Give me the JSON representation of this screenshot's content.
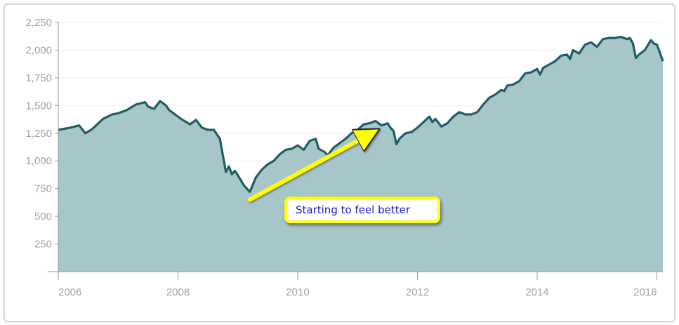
{
  "chart_data": {
    "type": "area",
    "title": "",
    "xlabel": "",
    "ylabel": "",
    "xlim": [
      2006.0,
      2016.1
    ],
    "ylim": [
      0,
      2250
    ],
    "y_ticks": [
      250,
      500,
      750,
      1000,
      1250,
      1500,
      1750,
      2000,
      2250
    ],
    "y_tick_labels": [
      "250",
      "500",
      "750",
      "1,000",
      "1,250",
      "1,500",
      "1,750",
      "2,000",
      "2,250"
    ],
    "x_ticks": [
      2006,
      2008,
      2010,
      2012,
      2014,
      2016
    ],
    "x_tick_labels": [
      "2006",
      "2008",
      "2010",
      "2012",
      "2014",
      "2016"
    ],
    "grid": true,
    "line_color": "#1f5f63",
    "fill_color": "#a7c6c9",
    "series": [
      {
        "x": [
          2006.0,
          2006.1,
          2006.2,
          2006.35,
          2006.45,
          2006.55,
          2006.65,
          2006.75,
          2006.9,
          2007.0,
          2007.15,
          2007.3,
          2007.45,
          2007.5,
          2007.6,
          2007.7,
          2007.8,
          2007.85,
          2007.95,
          2008.05,
          2008.2,
          2008.3,
          2008.4,
          2008.5,
          2008.6,
          2008.7,
          2008.75,
          2008.8,
          2008.85,
          2008.9,
          2008.95,
          2009.0,
          2009.1,
          2009.2,
          2009.3,
          2009.4,
          2009.5,
          2009.6,
          2009.7,
          2009.8,
          2009.9,
          2010.0,
          2010.1,
          2010.2,
          2010.3,
          2010.35,
          2010.45,
          2010.5,
          2010.6,
          2010.7,
          2010.8,
          2010.9,
          2011.0,
          2011.1,
          2011.2,
          2011.3,
          2011.4,
          2011.5,
          2011.55,
          2011.6,
          2011.65,
          2011.7,
          2011.8,
          2011.9,
          2012.0,
          2012.1,
          2012.2,
          2012.25,
          2012.3,
          2012.4,
          2012.5,
          2012.6,
          2012.7,
          2012.8,
          2012.9,
          2013.0,
          2013.1,
          2013.2,
          2013.3,
          2013.4,
          2013.45,
          2013.5,
          2013.6,
          2013.7,
          2013.8,
          2013.9,
          2014.0,
          2014.05,
          2014.1,
          2014.2,
          2014.3,
          2014.4,
          2014.5,
          2014.55,
          2014.6,
          2014.7,
          2014.8,
          2014.9,
          2015.0,
          2015.1,
          2015.2,
          2015.3,
          2015.4,
          2015.5,
          2015.55,
          2015.6,
          2015.65,
          2015.7,
          2015.8,
          2015.9,
          2015.95,
          2016.0,
          2016.05,
          2016.1
        ],
        "values": [
          1280,
          1290,
          1300,
          1320,
          1250,
          1280,
          1330,
          1380,
          1420,
          1430,
          1460,
          1510,
          1530,
          1490,
          1470,
          1540,
          1500,
          1460,
          1420,
          1380,
          1330,
          1370,
          1300,
          1280,
          1280,
          1200,
          1050,
          900,
          950,
          880,
          910,
          870,
          780,
          720,
          850,
          920,
          970,
          1000,
          1060,
          1100,
          1110,
          1140,
          1100,
          1180,
          1200,
          1110,
          1080,
          1050,
          1120,
          1160,
          1200,
          1250,
          1280,
          1330,
          1340,
          1360,
          1320,
          1340,
          1300,
          1270,
          1150,
          1200,
          1250,
          1260,
          1300,
          1350,
          1400,
          1350,
          1380,
          1310,
          1340,
          1400,
          1440,
          1420,
          1420,
          1440,
          1510,
          1570,
          1600,
          1640,
          1630,
          1680,
          1690,
          1720,
          1790,
          1800,
          1830,
          1780,
          1840,
          1870,
          1900,
          1950,
          1960,
          1920,
          2000,
          1970,
          2050,
          2070,
          2030,
          2100,
          2110,
          2110,
          2120,
          2100,
          2110,
          2060,
          1930,
          1960,
          2000,
          2090,
          2060,
          2050,
          1980,
          1900
        ]
      }
    ],
    "annotation": {
      "text": "Starting to feel better",
      "arrow_from": [
        2009.2,
        650
      ],
      "arrow_to": [
        2011.2,
        1240
      ]
    }
  }
}
